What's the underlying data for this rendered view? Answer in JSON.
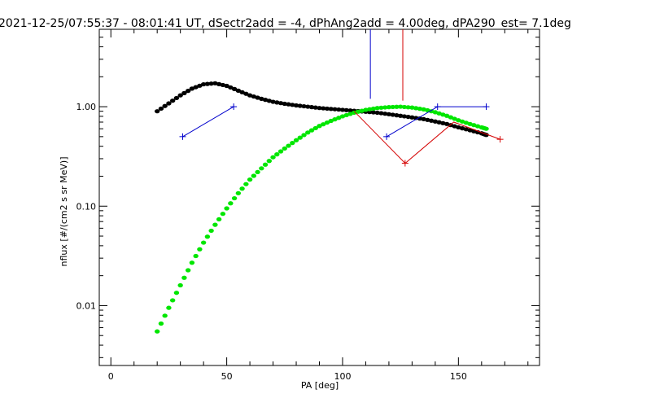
{
  "chart_data": {
    "type": "scatter",
    "title": "2021-12-25/07:55:37 - 08:01:41 UT, dSectr2add = -4, dPhAng2add = 4.00deg, dPA290_est=   7.1deg",
    "xlabel": "PA [deg]",
    "ylabel": "nflux [#/(cm2 s sr MeV)]",
    "xlim": [
      -5,
      185
    ],
    "ylim": [
      0.0025,
      6.0
    ],
    "yscale": "log",
    "grid": false,
    "x_ticks": [
      0,
      50,
      100,
      150
    ],
    "x_tick_labels": [
      "0",
      "50",
      "100",
      "150"
    ],
    "y_ticks": [
      0.01,
      0.1,
      1.0
    ],
    "y_tick_labels": [
      "0.01",
      "0.10",
      "1.00"
    ],
    "colors": {
      "black": "#000000",
      "green": "#00e600",
      "blue": "#0000cc",
      "red": "#d40000"
    },
    "series": [
      {
        "style": "thick-dots",
        "color": "#000000",
        "points": [
          [
            20,
            0.9
          ],
          [
            25,
            1.08
          ],
          [
            30,
            1.3
          ],
          [
            35,
            1.52
          ],
          [
            40,
            1.68
          ],
          [
            45,
            1.72
          ],
          [
            50,
            1.62
          ],
          [
            55,
            1.45
          ],
          [
            60,
            1.3
          ],
          [
            65,
            1.2
          ],
          [
            70,
            1.12
          ],
          [
            75,
            1.07
          ],
          [
            80,
            1.03
          ],
          [
            85,
            1.0
          ],
          [
            90,
            0.97
          ],
          [
            95,
            0.95
          ],
          [
            100,
            0.93
          ],
          [
            105,
            0.91
          ],
          [
            110,
            0.89
          ],
          [
            115,
            0.87
          ],
          [
            120,
            0.84
          ],
          [
            125,
            0.81
          ],
          [
            130,
            0.78
          ],
          [
            135,
            0.75
          ],
          [
            140,
            0.71
          ],
          [
            145,
            0.67
          ],
          [
            150,
            0.62
          ],
          [
            155,
            0.58
          ],
          [
            160,
            0.54
          ],
          [
            162,
            0.52
          ]
        ]
      },
      {
        "style": "thick-dots",
        "color": "#00e600",
        "points": [
          [
            20,
            0.0055
          ],
          [
            25,
            0.0095
          ],
          [
            30,
            0.016
          ],
          [
            35,
            0.027
          ],
          [
            40,
            0.043
          ],
          [
            45,
            0.065
          ],
          [
            50,
            0.095
          ],
          [
            55,
            0.135
          ],
          [
            60,
            0.185
          ],
          [
            65,
            0.24
          ],
          [
            70,
            0.31
          ],
          [
            75,
            0.38
          ],
          [
            80,
            0.46
          ],
          [
            85,
            0.55
          ],
          [
            90,
            0.64
          ],
          [
            95,
            0.72
          ],
          [
            100,
            0.8
          ],
          [
            105,
            0.87
          ],
          [
            110,
            0.93
          ],
          [
            115,
            0.97
          ],
          [
            120,
            0.99
          ],
          [
            125,
            1.0
          ],
          [
            130,
            0.98
          ],
          [
            135,
            0.94
          ],
          [
            140,
            0.88
          ],
          [
            145,
            0.81
          ],
          [
            150,
            0.73
          ],
          [
            155,
            0.67
          ],
          [
            160,
            0.62
          ],
          [
            162,
            0.6
          ]
        ]
      },
      {
        "style": "line-plus",
        "color": "#0000cc",
        "points": [
          [
            31,
            0.5
          ],
          [
            53,
            1.0
          ]
        ]
      },
      {
        "style": "line-plus",
        "color": "#0000cc",
        "points": [
          [
            119,
            0.5
          ],
          [
            141,
            1.0
          ],
          [
            162,
            1.0
          ]
        ]
      },
      {
        "style": "line",
        "color": "#d40000",
        "points": [
          [
            105,
            0.9
          ],
          [
            127,
            0.27
          ],
          [
            148,
            0.7
          ],
          [
            168,
            0.47
          ]
        ]
      },
      {
        "style": "plus-only",
        "color": "#d40000",
        "points": [
          [
            127,
            0.27
          ],
          [
            168,
            0.47
          ]
        ]
      }
    ],
    "vertical_markers": [
      {
        "x": 112,
        "color": "#0000cc",
        "from_y": 1.2
      },
      {
        "x": 126,
        "color": "#d40000",
        "from_y": 1.15
      }
    ]
  }
}
